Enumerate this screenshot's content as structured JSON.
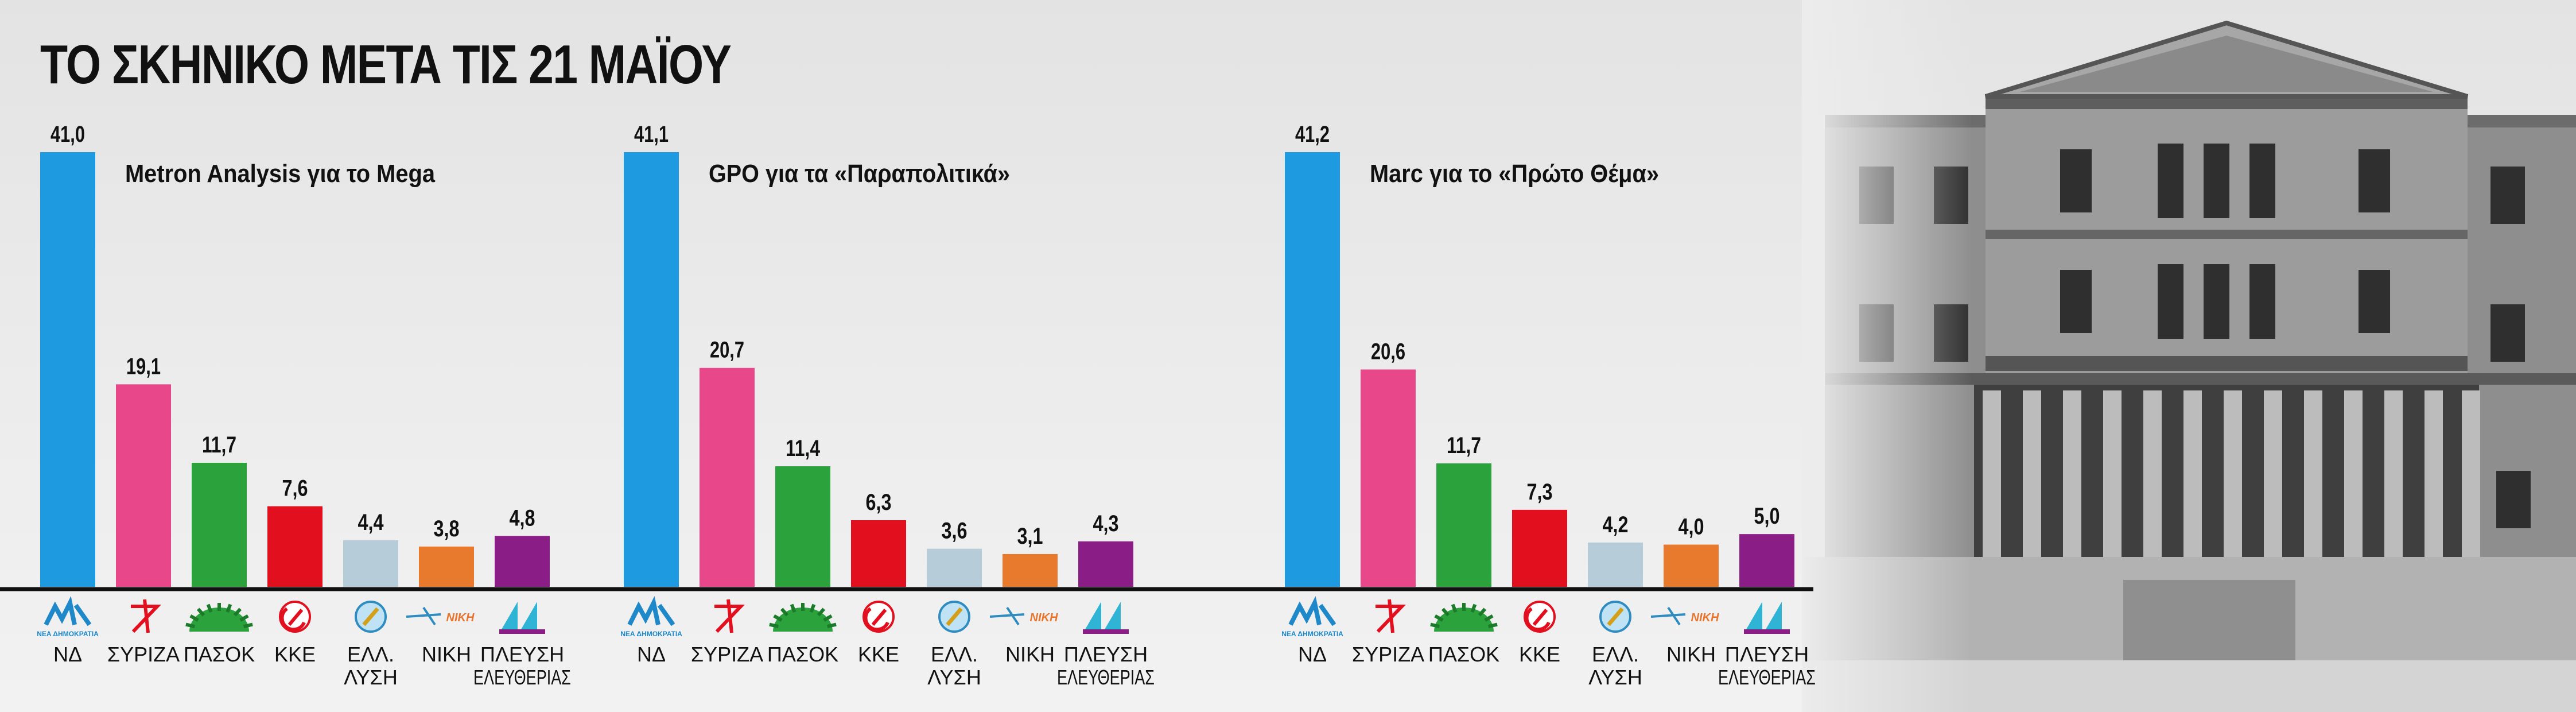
{
  "title": "ΤΟ ΣΚΗΝΙΚΟ ΜΕΤΑ ΤΙΣ 21 ΜΑΪΟΥ",
  "chart_data": [
    {
      "type": "bar",
      "title": "Metron Analysis για το Mega",
      "categories": [
        [
          "ΝΔ"
        ],
        [
          "ΣΥΡΙΖΑ"
        ],
        [
          "ΠΑΣΟΚ"
        ],
        [
          "ΚΚΕ"
        ],
        [
          "ΕΛΛ.",
          "ΛΥΣΗ"
        ],
        [
          "ΝΙΚΗ"
        ],
        [
          "ΠΛΕΥΣΗ",
          "ΕΛΕΥΘΕΡΙΑΣ"
        ]
      ],
      "values": [
        41.0,
        19.1,
        11.7,
        7.6,
        4.4,
        3.8,
        4.8
      ],
      "value_labels": [
        "41,0",
        "19,1",
        "11,7",
        "7,6",
        "4,4",
        "3,8",
        "4,8"
      ],
      "ylim": [
        0,
        42
      ]
    },
    {
      "type": "bar",
      "title": "GPO για τα «Παραπολιτικά»",
      "categories": [
        [
          "ΝΔ"
        ],
        [
          "ΣΥΡΙΖΑ"
        ],
        [
          "ΠΑΣΟΚ"
        ],
        [
          "ΚΚΕ"
        ],
        [
          "ΕΛΛ.",
          "ΛΥΣΗ"
        ],
        [
          "ΝΙΚΗ"
        ],
        [
          "ΠΛΕΥΣΗ",
          "ΕΛΕΥΘΕΡΙΑΣ"
        ]
      ],
      "values": [
        41.1,
        20.7,
        11.4,
        6.3,
        3.6,
        3.1,
        4.3
      ],
      "value_labels": [
        "41,1",
        "20,7",
        "11,4",
        "6,3",
        "3,6",
        "3,1",
        "4,3"
      ],
      "ylim": [
        0,
        42
      ]
    },
    {
      "type": "bar",
      "title": "Marc για το «Πρώτο Θέμα»",
      "categories": [
        [
          "ΝΔ"
        ],
        [
          "ΣΥΡΙΖΑ"
        ],
        [
          "ΠΑΣΟΚ"
        ],
        [
          "ΚΚΕ"
        ],
        [
          "ΕΛΛ.",
          "ΛΥΣΗ"
        ],
        [
          "ΝΙΚΗ"
        ],
        [
          "ΠΛΕΥΣΗ",
          "ΕΛΕΥΘΕΡΙΑΣ"
        ]
      ],
      "values": [
        41.2,
        20.6,
        11.7,
        7.3,
        4.2,
        4.0,
        5.0
      ],
      "value_labels": [
        "41,2",
        "20,6",
        "11,7",
        "7,3",
        "4,2",
        "4,0",
        "5,0"
      ],
      "ylim": [
        0,
        42
      ]
    }
  ],
  "party_colors": [
    "#1e9ae0",
    "#e8488a",
    "#2ba23c",
    "#e2101f",
    "#b6ccd9",
    "#e87a2e",
    "#8b1e86"
  ],
  "party_icons": [
    "nd-logo-icon",
    "syriza-star-icon",
    "pasok-sun-icon",
    "kke-hammer-sickle-icon",
    "elliniki-lysi-logo-icon",
    "niki-logo-icon",
    "plefsi-eleftherias-logo-icon"
  ],
  "logo_small_text": {
    "nd": "ΝΕΑ ΔΗΜΟΚΡΑΤΙΑ",
    "niki": "ΝΙΚΗ"
  }
}
